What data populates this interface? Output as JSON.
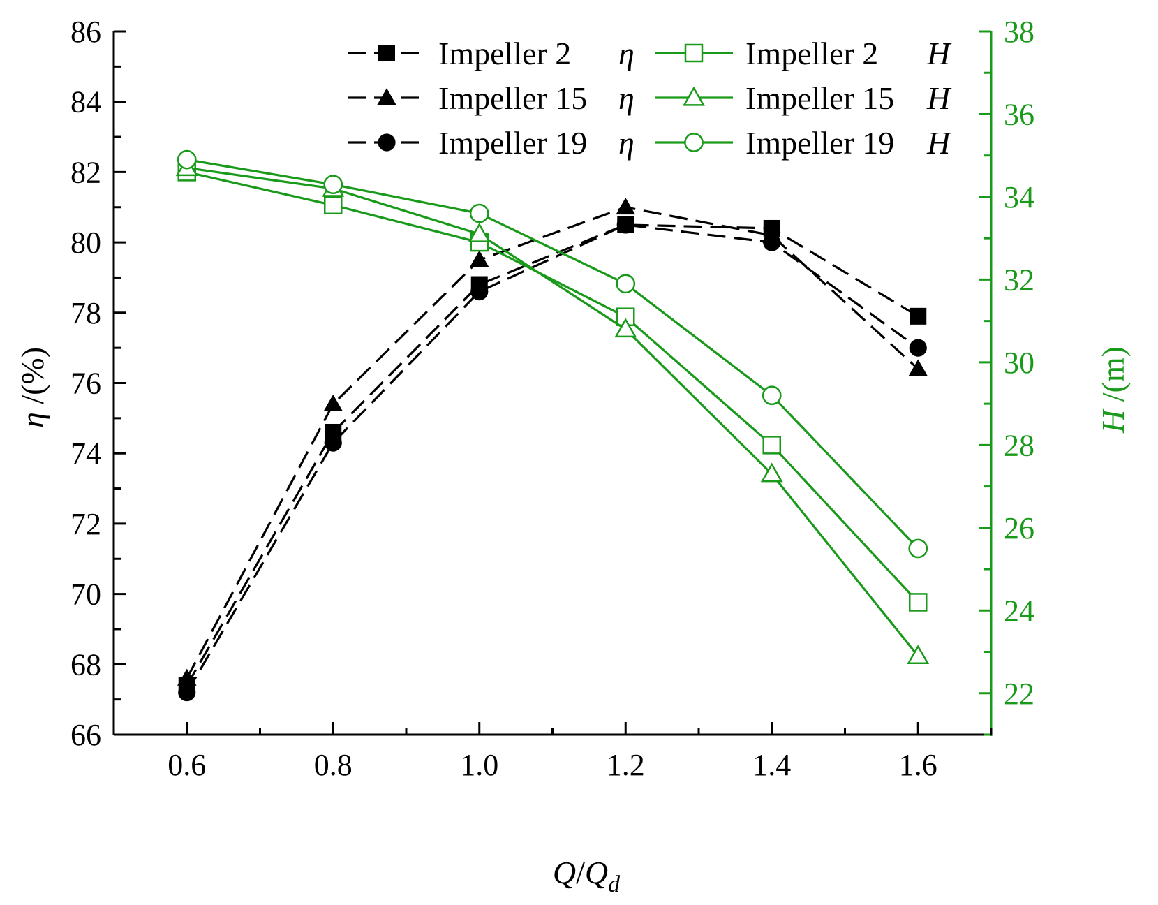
{
  "colors": {
    "efficiency": "#000000",
    "head": "#1a9a1a"
  },
  "chart_data": {
    "type": "line",
    "x": [
      0.6,
      0.8,
      1.0,
      1.2,
      1.4,
      1.6
    ],
    "x_tick_labels": [
      "0.6",
      "0.8",
      "1.0",
      "1.2",
      "1.4",
      "1.6"
    ],
    "xlim": [
      0.5,
      1.7
    ],
    "x_axis": {
      "symbol_Q": "Q",
      "slash": "/",
      "symbol_Qd": "Q",
      "subscript_d": "d"
    },
    "y_left": {
      "ylim": [
        66,
        86
      ],
      "ticks": [
        "66",
        "68",
        "70",
        "72",
        "74",
        "76",
        "78",
        "80",
        "82",
        "84",
        "86"
      ],
      "label_symbol": "η",
      "label_unit": " /(%)"
    },
    "y_right": {
      "ylim": [
        21,
        38
      ],
      "ticks": [
        "22",
        "24",
        "26",
        "28",
        "30",
        "32",
        "34",
        "36",
        "38"
      ],
      "label_symbol": "H",
      "label_unit": " /(m)"
    },
    "series": [
      {
        "name": "Impeller 2",
        "variable": "η",
        "axis": "left",
        "marker": "square",
        "filled": true,
        "style": "dashed",
        "values": [
          67.4,
          74.6,
          78.8,
          80.5,
          80.4,
          77.9
        ]
      },
      {
        "name": "Impeller 15",
        "variable": "η",
        "axis": "left",
        "marker": "triangle",
        "filled": true,
        "style": "dashed",
        "values": [
          67.6,
          75.4,
          79.5,
          81.0,
          80.2,
          76.4
        ]
      },
      {
        "name": "Impeller 19",
        "variable": "η",
        "axis": "left",
        "marker": "circle",
        "filled": true,
        "style": "dashed",
        "values": [
          67.2,
          74.3,
          78.6,
          80.5,
          80.0,
          77.0
        ]
      },
      {
        "name": "Impeller 2",
        "variable": "H",
        "axis": "right",
        "marker": "square",
        "filled": false,
        "style": "solid",
        "values": [
          34.6,
          33.8,
          32.9,
          31.1,
          28.0,
          24.2
        ]
      },
      {
        "name": "Impeller 15",
        "variable": "H",
        "axis": "right",
        "marker": "triangle",
        "filled": false,
        "style": "solid",
        "values": [
          34.7,
          34.2,
          33.1,
          30.8,
          27.3,
          22.9
        ]
      },
      {
        "name": "Impeller 19",
        "variable": "H",
        "axis": "right",
        "marker": "circle",
        "filled": false,
        "style": "solid",
        "values": [
          34.9,
          34.3,
          33.6,
          31.9,
          29.2,
          25.5
        ]
      }
    ],
    "legend": {
      "placement": "top-right",
      "entries": [
        {
          "label": "Impeller 2",
          "var": "η"
        },
        {
          "label": "Impeller 2",
          "var": "H"
        },
        {
          "label": "Impeller 15",
          "var": "η"
        },
        {
          "label": "Impeller 15",
          "var": "H"
        },
        {
          "label": "Impeller 19",
          "var": "η"
        },
        {
          "label": "Impeller 19",
          "var": "H"
        }
      ]
    }
  }
}
